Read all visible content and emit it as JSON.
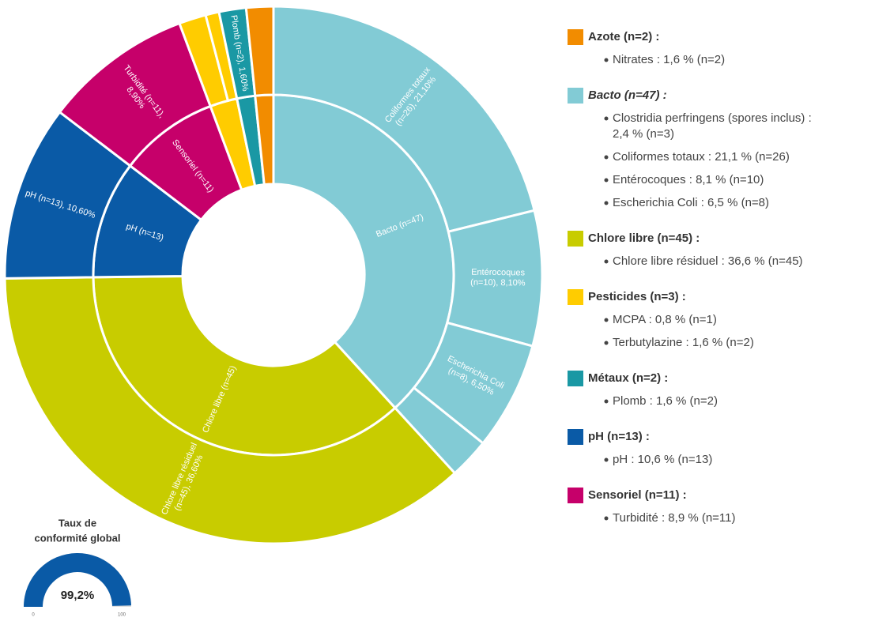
{
  "chart_data": {
    "type": "sunburst",
    "groups": [
      {
        "name": "Bacto",
        "color": "#82cbd5",
        "value": 47,
        "label": [
          "Bacto (n=47)"
        ],
        "items": [
          {
            "name": "Coliformes totaux",
            "value": 26,
            "label": [
              "Coliformes totaux",
              "(n=26), 21,10%"
            ]
          },
          {
            "name": "Entérocoques",
            "value": 10,
            "label": [
              "Entérocoques",
              "(n=10), 8,10%"
            ]
          },
          {
            "name": "Escherichia Coli",
            "value": 8,
            "label": [
              "Escherichia Coli",
              "(n=8), 6,50%"
            ]
          },
          {
            "name": "Clostridia perfringens (spores inclus)",
            "value": 3
          }
        ]
      },
      {
        "name": "Chlore libre",
        "color": "#c8cc00",
        "value": 45,
        "label": [
          "Chlore libre (n=45)"
        ],
        "items": [
          {
            "name": "Chlore libre résiduel",
            "value": 45,
            "label": [
              "Chlore libre résiduel",
              "(n=45), 36,60%"
            ]
          }
        ]
      },
      {
        "name": "pH",
        "color": "#0a5aa6",
        "value": 13,
        "label": [
          "pH (n=13)"
        ],
        "items": [
          {
            "name": "pH",
            "value": 13,
            "label": [
              "pH (n=13), 10,60%"
            ]
          }
        ]
      },
      {
        "name": "Sensoriel",
        "color": "#c6006a",
        "value": 11,
        "label": [
          "Sensoriel (n=11)"
        ],
        "items": [
          {
            "name": "Turbidité",
            "value": 11,
            "label": [
              "Turbidité (n=11),",
              "8,90%"
            ]
          }
        ]
      },
      {
        "name": "Pesticides",
        "color": "#ffcc00",
        "value": 3,
        "items": [
          {
            "name": "Terbutylazine",
            "value": 2
          },
          {
            "name": "MCPA",
            "value": 1
          }
        ]
      },
      {
        "name": "Métaux",
        "color": "#1a98a4",
        "value": 2,
        "items": [
          {
            "name": "Plomb",
            "value": 2,
            "label": [
              "Plomb (n=2), 1,60%"
            ]
          }
        ]
      },
      {
        "name": "Azote",
        "color": "#f28c00",
        "value": 2,
        "items": [
          {
            "name": "Nitrates",
            "value": 2
          }
        ]
      }
    ],
    "legend": [
      {
        "title": "Azote (n=2) :",
        "color": "#f28c00",
        "items": [
          [
            "Nitrates : 1,6 % (n=2)"
          ]
        ]
      },
      {
        "title": "Bacto (n=47) :",
        "italic": true,
        "color": "#82cbd5",
        "items": [
          [
            "Clostridia perfringens (spores inclus) :",
            "2,4 % (n=3)"
          ],
          [
            "Coliformes totaux : 21,1 % (n=26)"
          ],
          [
            "Entérocoques : 8,1 % (n=10)"
          ],
          [
            "Escherichia Coli : 6,5 % (n=8)"
          ]
        ]
      },
      {
        "title": "Chlore libre (n=45) :",
        "color": "#c8cc00",
        "items": [
          [
            "Chlore libre résiduel : 36,6 % (n=45)"
          ]
        ]
      },
      {
        "title": "Pesticides (n=3) :",
        "color": "#ffcc00",
        "items": [
          [
            "MCPA : 0,8 % (n=1)"
          ],
          [
            "Terbutylazine : 1,6 % (n=2)"
          ]
        ]
      },
      {
        "title": "Métaux (n=2) :",
        "color": "#1a98a4",
        "items": [
          [
            "Plomb : 1,6 % (n=2)"
          ]
        ]
      },
      {
        "title": "pH (n=13) :",
        "color": "#0a5aa6",
        "items": [
          [
            "pH : 10,6 % (n=13)"
          ]
        ]
      },
      {
        "title": "Sensoriel (n=11) :",
        "color": "#c6006a",
        "items": [
          [
            "Turbidité : 8,9 % (n=11)"
          ]
        ]
      }
    ]
  },
  "gauge": {
    "title": [
      "Taux de",
      "conformité global"
    ],
    "value": 99.2,
    "value_label": "99,2%",
    "lim": [
      0,
      100
    ],
    "color": "#0a5aa6"
  }
}
